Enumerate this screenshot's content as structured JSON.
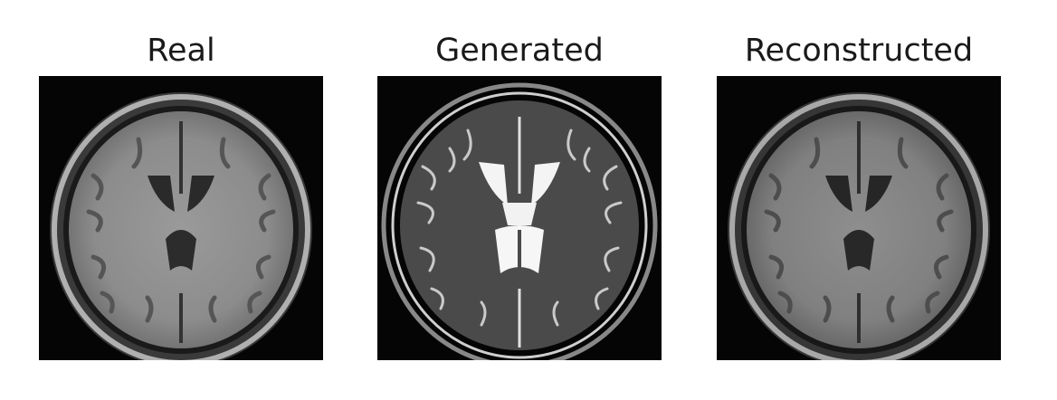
{
  "panels": [
    {
      "title": "Real",
      "image": "brain-mri-t1-axial"
    },
    {
      "title": "Generated",
      "image": "brain-mri-t2-axial"
    },
    {
      "title": "Reconstructed",
      "image": "brain-mri-t1-axial-reconstructed"
    }
  ]
}
